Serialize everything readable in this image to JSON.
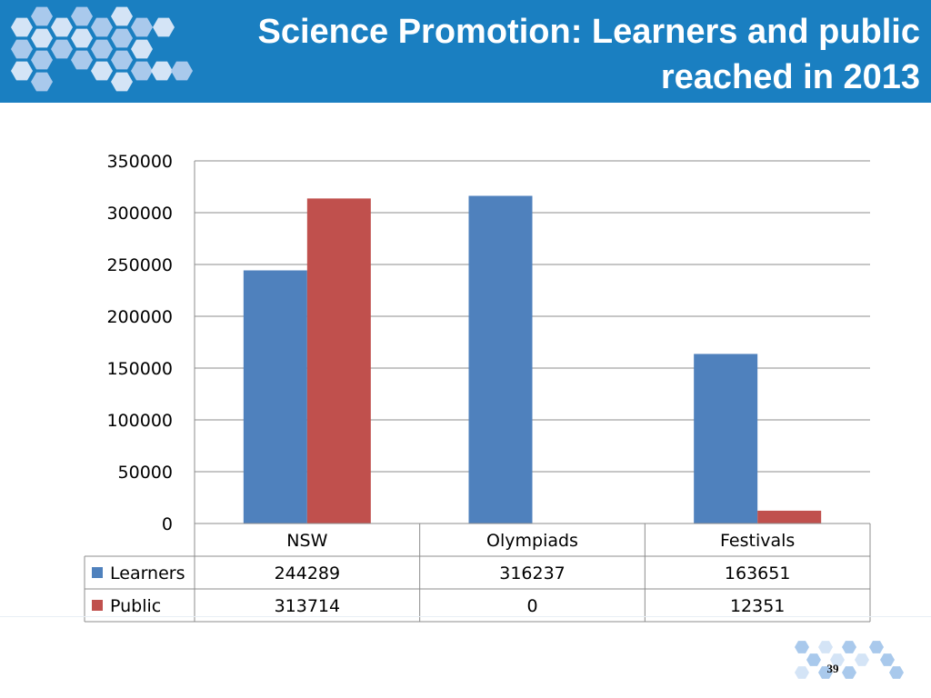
{
  "slide": {
    "title": "Science Promotion: Learners and public reached in 2013",
    "number": "39"
  },
  "colors": {
    "header_bg": "#1a7fc1",
    "hex_light": "#a9c9ec",
    "hex_pale": "#d4e4f6",
    "learners": "#4f81bd",
    "public": "#c0504d"
  },
  "chart_data": {
    "type": "bar",
    "title": "Science Promotion: Learners and public reached in 2013",
    "categories": [
      "NSW",
      "Olympiads",
      "Festivals"
    ],
    "series": [
      {
        "name": "Learners",
        "color": "#4f81bd",
        "values": [
          244289,
          316237,
          163651
        ]
      },
      {
        "name": "Public",
        "color": "#c0504d",
        "values": [
          313714,
          0,
          12351
        ]
      }
    ],
    "y_ticks": [
      0,
      50000,
      100000,
      150000,
      200000,
      250000,
      300000,
      350000
    ],
    "ylim": [
      0,
      350000
    ],
    "grid": true,
    "legend": "data-table-left",
    "data_table": true
  }
}
